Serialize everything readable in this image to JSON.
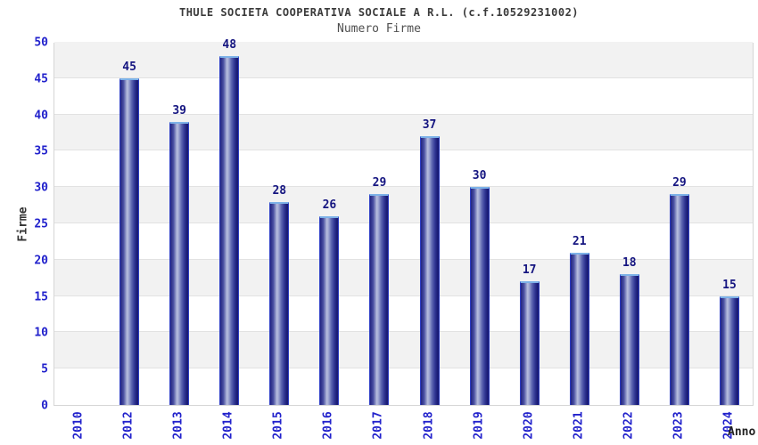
{
  "chart_data": {
    "type": "bar",
    "title": "THULE SOCIETA COOPERATIVA SOCIALE A R.L. (c.f.10529231002)",
    "subtitle": "Numero Firme",
    "xlabel": "Anno",
    "ylabel": "Firme",
    "categories": [
      "2010",
      "2012",
      "2013",
      "2014",
      "2015",
      "2016",
      "2017",
      "2018",
      "2019",
      "2020",
      "2021",
      "2022",
      "2023",
      "2024"
    ],
    "values": [
      null,
      45,
      39,
      48,
      28,
      26,
      29,
      37,
      30,
      17,
      21,
      18,
      29,
      15
    ],
    "ylim": [
      0,
      50
    ],
    "ytick_step": 5,
    "grid": "horizontal-bands",
    "legend": "none",
    "colors": {
      "bar_dark": "#1c1e78",
      "bar_light": "#b9c0de",
      "bar_border": "#2e3ec4",
      "bar_top_cap": "#7db2e8",
      "tick_label": "#2222cc",
      "value_label": "#151580",
      "band_gray": "#f2f2f2",
      "grid_line": "#e2e2e2",
      "title": "#3a3a3a",
      "subtitle": "#4f4f4f"
    }
  }
}
